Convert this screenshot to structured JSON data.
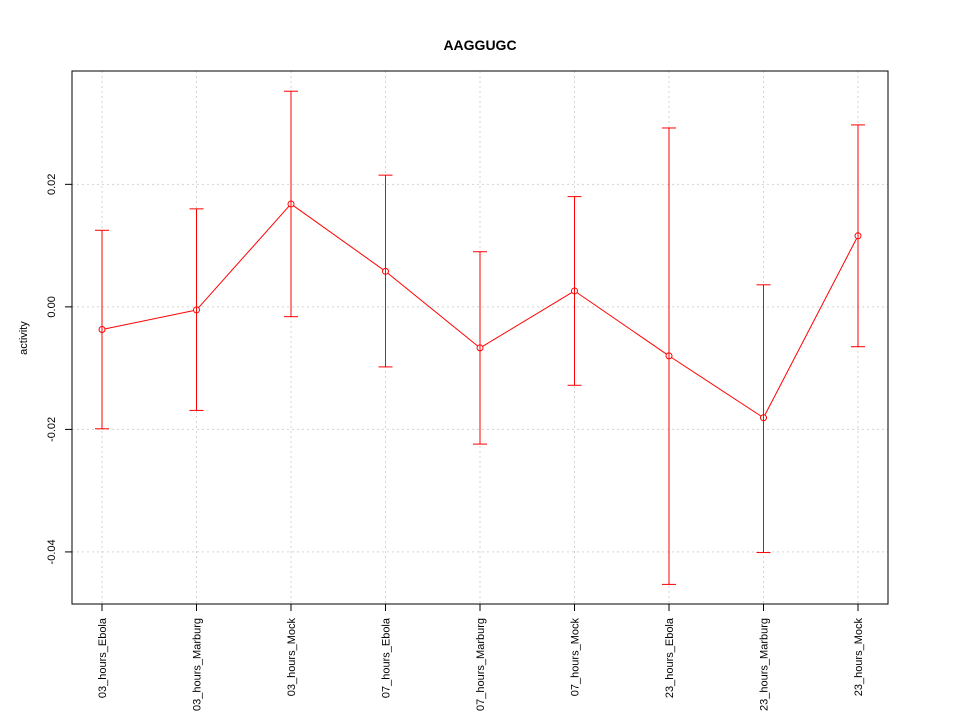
{
  "chart_data": {
    "type": "line",
    "title": "AAGGUGC",
    "xlabel": "",
    "ylabel": "activity",
    "ylim": [
      -0.0485,
      0.0385
    ],
    "yticks": [
      -0.04,
      -0.02,
      0.0,
      0.02
    ],
    "ytick_labels": [
      "-0.04",
      "-0.02",
      "0.00",
      "0.02"
    ],
    "grid": true,
    "categories": [
      "03_hours_Ebola",
      "03_hours_Marburg",
      "03_hours_Mock",
      "07_hours_Ebola",
      "07_hours_Marburg",
      "07_hours_Mock",
      "23_hours_Ebola",
      "23_hours_Marburg",
      "23_hours_Mock"
    ],
    "series": [
      {
        "values": [
          -0.0037,
          -0.0005,
          0.0168,
          0.0058,
          -0.0067,
          0.0026,
          -0.008,
          -0.0181,
          0.0116
        ],
        "lower": [
          -0.0199,
          -0.0169,
          -0.0016,
          -0.0098,
          -0.0224,
          -0.0128,
          -0.0453,
          -0.0401,
          -0.0065
        ],
        "upper": [
          0.0125,
          0.016,
          0.0352,
          0.0215,
          0.009,
          0.018,
          0.0292,
          0.0036,
          0.0297
        ],
        "color": "#ff0000"
      }
    ]
  }
}
